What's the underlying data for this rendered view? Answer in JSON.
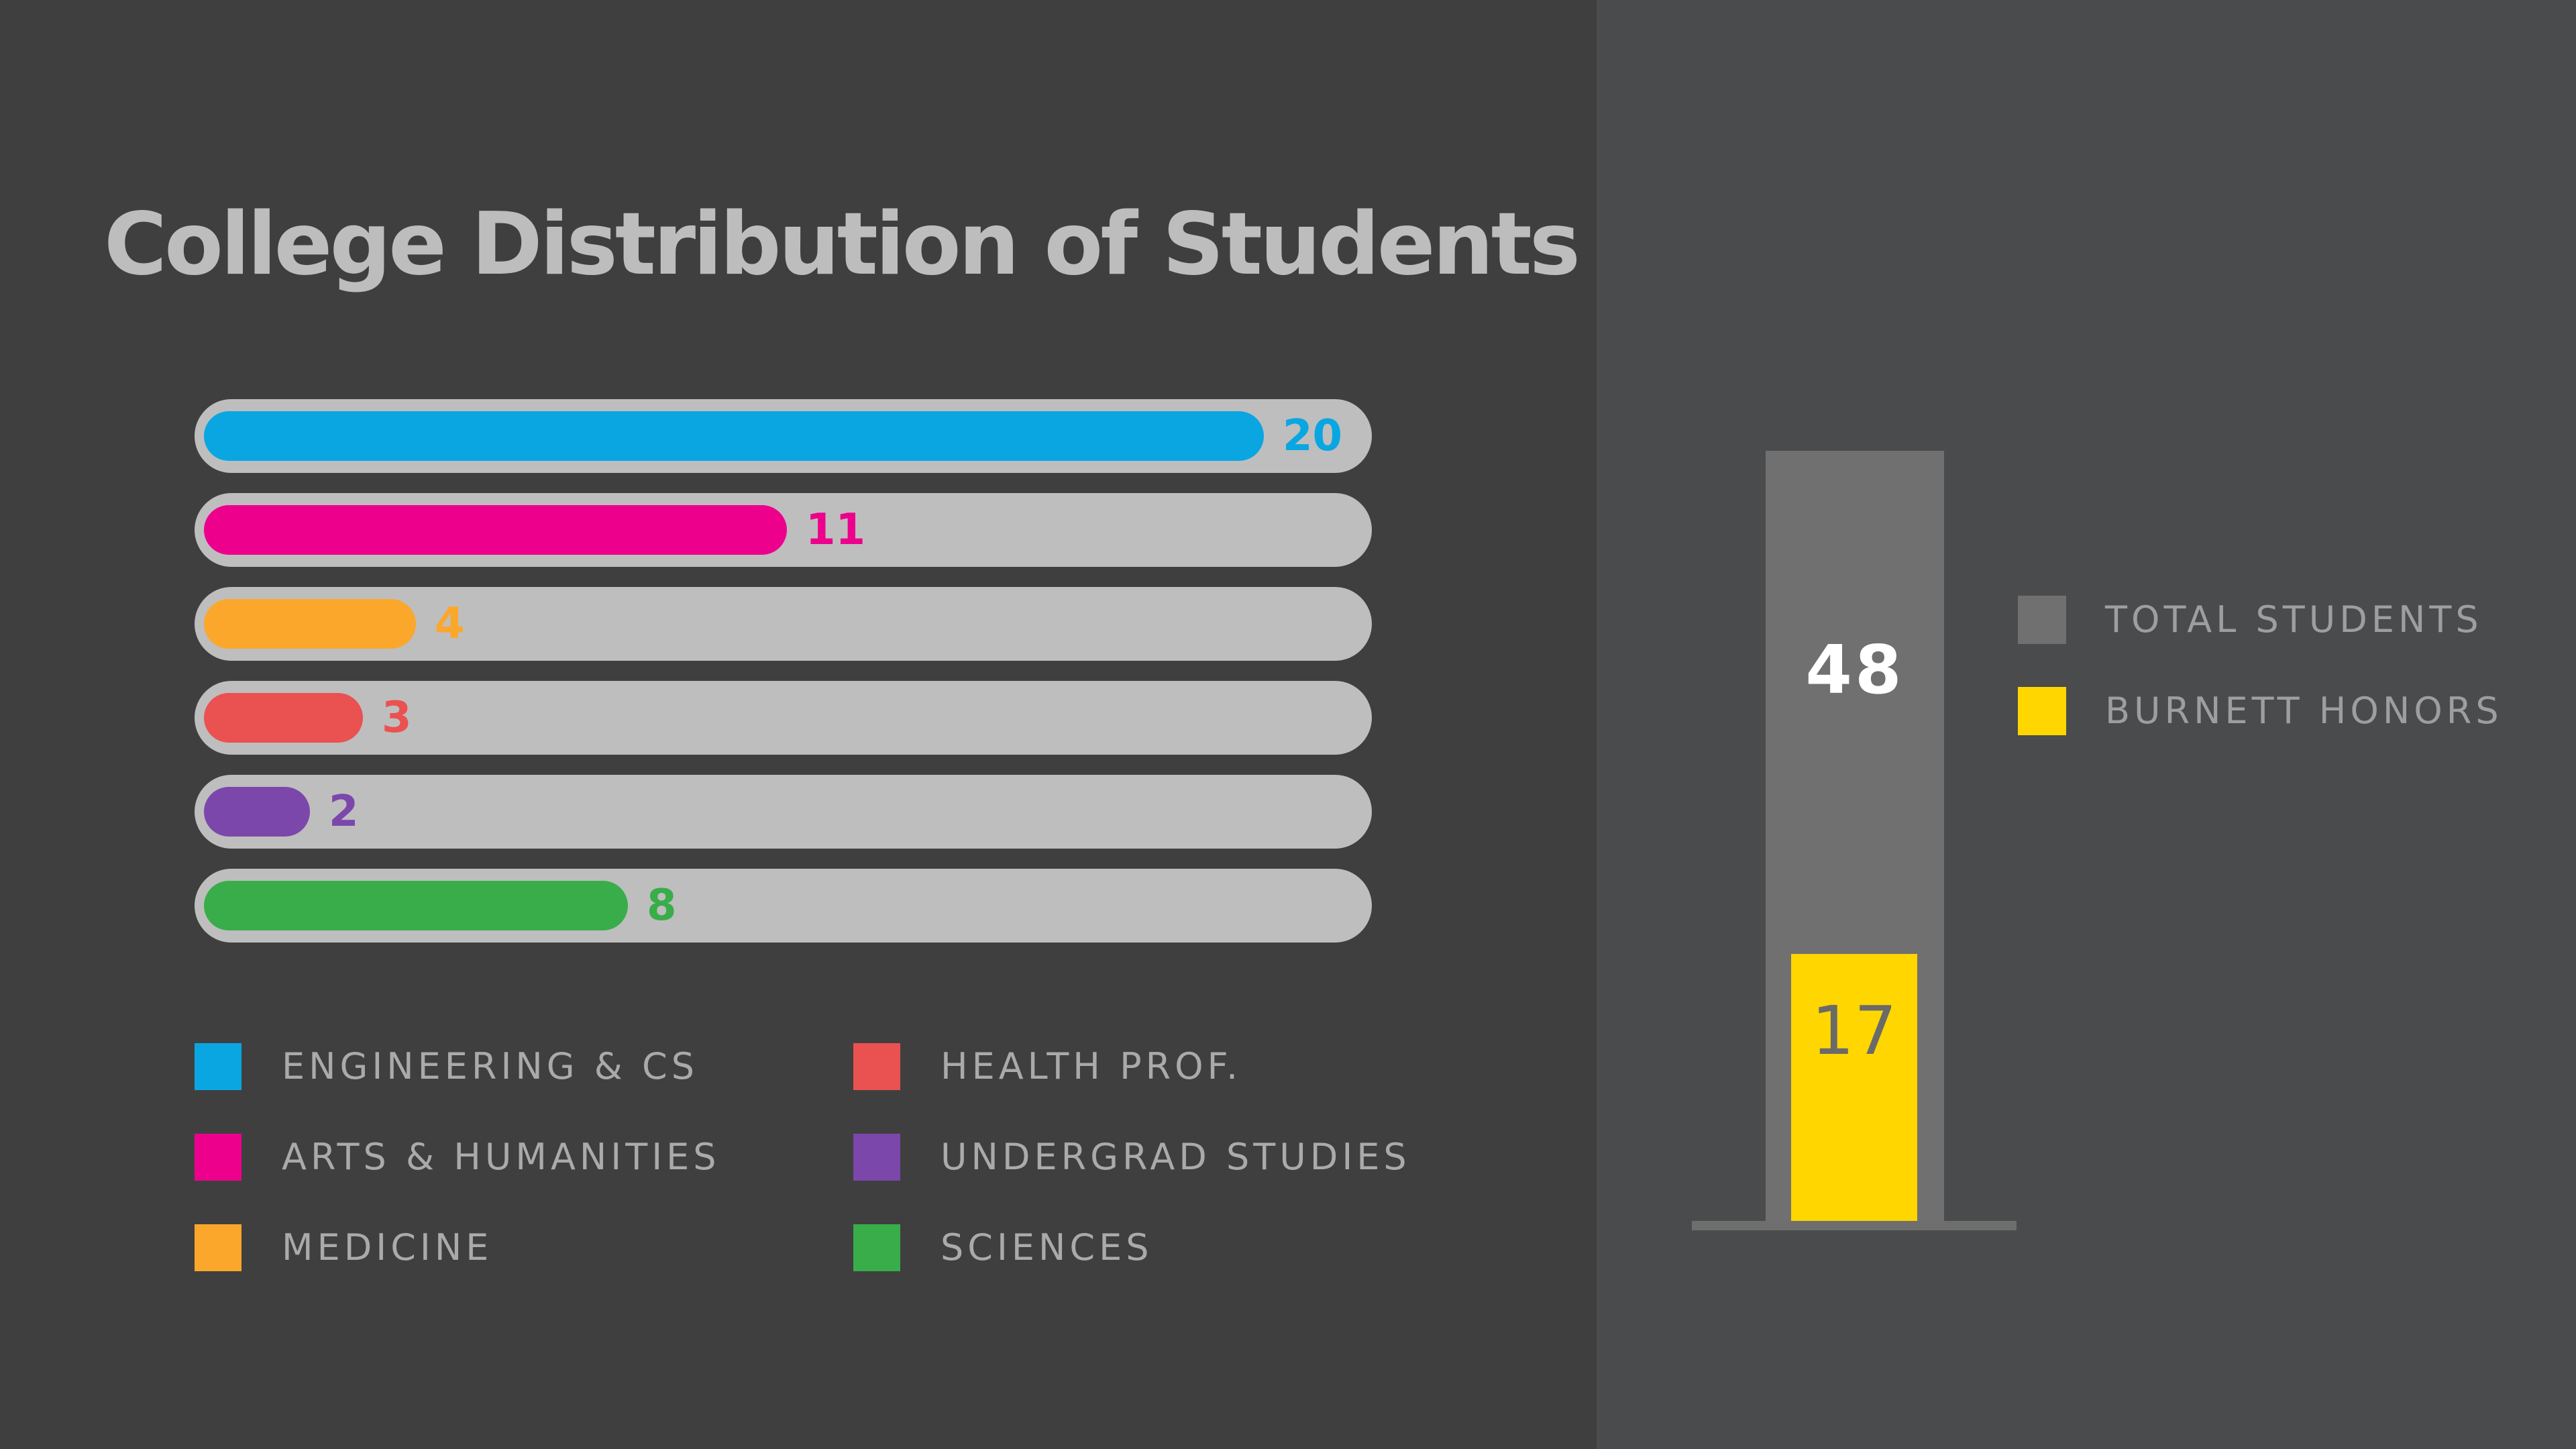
{
  "title": "College Distribution of Students",
  "chart_data": [
    {
      "type": "bar",
      "orientation": "horizontal",
      "categories": [
        "ENGINEERING & CS",
        "ARTS & HUMANITIES",
        "MEDICINE",
        "HEALTH PROF.",
        "UNDERGRAD STUDIES",
        "SCIENCES"
      ],
      "values": [
        20,
        11,
        4,
        3,
        2,
        8
      ],
      "value_labels": [
        "20",
        "11",
        "4",
        "3",
        "2",
        "8"
      ],
      "colors": [
        "#0aa6e2",
        "#ec008c",
        "#faa72b",
        "#ea5151",
        "#7c47ab",
        "#39ad4a"
      ],
      "xlim": [
        0,
        22
      ],
      "title": "College Distribution of Students",
      "legend": [
        {
          "label": "ENGINEERING & CS",
          "color": "#0aa6e2"
        },
        {
          "label": "ARTS & HUMANITIES",
          "color": "#ec008c"
        },
        {
          "label": "MEDICINE",
          "color": "#faa72b"
        },
        {
          "label": "HEALTH PROF.",
          "color": "#ea5151"
        },
        {
          "label": "UNDERGRAD STUDIES",
          "color": "#7c47ab"
        },
        {
          "label": "SCIENCES",
          "color": "#39ad4a"
        }
      ]
    },
    {
      "type": "bar",
      "orientation": "vertical",
      "series": [
        {
          "name": "TOTAL STUDENTS",
          "values": [
            48
          ],
          "label": "48",
          "color": "#707070"
        },
        {
          "name": "BURNETT HONORS",
          "values": [
            17
          ],
          "label": "17",
          "color": "#ffd600"
        }
      ],
      "ylim": [
        0,
        48
      ],
      "legend": [
        {
          "label": "TOTAL STUDENTS",
          "color": "#707070"
        },
        {
          "label": "BURNETT HONORS",
          "color": "#ffd600"
        }
      ]
    }
  ]
}
